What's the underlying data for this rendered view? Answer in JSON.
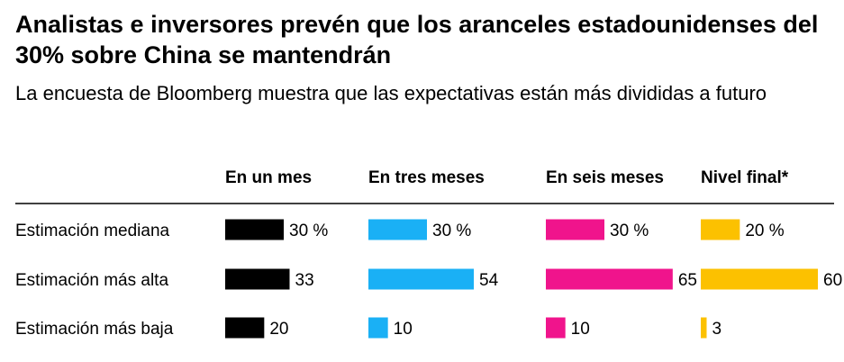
{
  "title": "Analistas e inversores prevén que los aranceles estadounidenses del 30% sobre China se mantendrán",
  "subtitle": "La encuesta de Bloomberg muestra que las expectativas están más divididas a futuro",
  "colors": {
    "en_un_mes": "#000000",
    "en_tres_meses": "#1ab0f5",
    "en_seis_meses": "#f0148c",
    "nivel_final": "#fcc100",
    "divider": "#000000"
  },
  "chart_data": {
    "type": "bar",
    "title": "Analistas e inversores prevén que los aranceles estadounidenses del 30% sobre China se mantendrán",
    "subtitle": "La encuesta de Bloomberg muestra que las expectativas están más divididas a futuro",
    "layout": "small-multiples-horizontal-bars",
    "columns": [
      "En un mes",
      "En tres meses",
      "En seis meses",
      "Nivel final*"
    ],
    "rows": [
      "Estimación mediana",
      "Estimación más alta",
      "Estimación más baja"
    ],
    "series": [
      {
        "name": "En un mes",
        "color": "#000000",
        "values": [
          30,
          33,
          20
        ],
        "labels": [
          "30 %",
          "33",
          "20"
        ]
      },
      {
        "name": "En tres meses",
        "color": "#1ab0f5",
        "values": [
          30,
          54,
          10
        ],
        "labels": [
          "30 %",
          "54",
          "10"
        ]
      },
      {
        "name": "En seis meses",
        "color": "#f0148c",
        "values": [
          30,
          65,
          10
        ],
        "labels": [
          "30 %",
          "65",
          "10"
        ]
      },
      {
        "name": "Nivel final*",
        "color": "#fcc100",
        "values": [
          20,
          60,
          3
        ],
        "labels": [
          "20 %",
          "60",
          "3"
        ]
      }
    ],
    "units": "%",
    "xlim": [
      0,
      65
    ]
  }
}
